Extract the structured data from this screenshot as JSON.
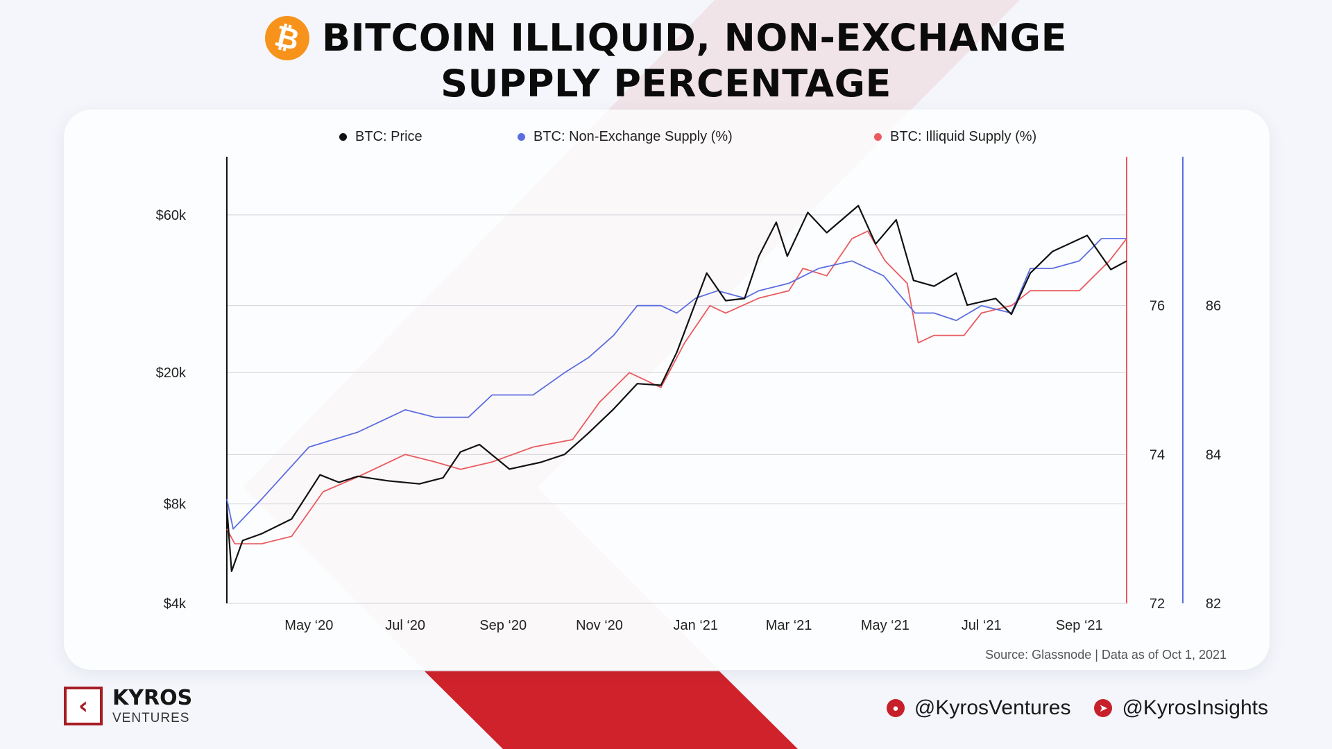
{
  "header": {
    "title_line1": "BITCOIN ILLIQUID, NON-EXCHANGE",
    "title_line2": "SUPPLY PERCENTAGE",
    "logo_icon": "bitcoin-logo-icon",
    "logo_glyph": "₿"
  },
  "colors": {
    "price": "#111111",
    "non_exchange": "#5b6de0",
    "illiquid": "#ea5a5f",
    "brand_red": "#c8202a",
    "bitcoin_orange": "#f7931a"
  },
  "chart_data": {
    "type": "line",
    "legend_placement": "top",
    "grid": true,
    "x_ticks": [
      "May ‘20",
      "Jul ‘20",
      "Sep ‘20",
      "Nov ‘20",
      "Jan ‘21",
      "Mar ‘21",
      "May ‘21",
      "Jul ‘21",
      "Sep ‘21"
    ],
    "x_tick_dates": [
      "2020-05-01",
      "2020-07-01",
      "2020-09-01",
      "2020-11-01",
      "2021-01-01",
      "2021-03-01",
      "2021-05-01",
      "2021-07-01",
      "2021-09-01"
    ],
    "x_range": [
      "2020-03-10",
      "2021-10-01"
    ],
    "axes": {
      "price": {
        "ticks": [
          "$60k",
          "$20k",
          "$8k",
          "$4k"
        ],
        "tick_values": [
          60000,
          20000,
          8000,
          4000
        ],
        "range": [
          4000,
          90000
        ],
        "scale": "log"
      },
      "illiquid": {
        "ticks": [
          "76",
          "74",
          "72"
        ],
        "tick_values": [
          76,
          74,
          72
        ],
        "range": [
          72,
          78
        ]
      },
      "non_exchange": {
        "ticks": [
          "86",
          "84",
          "82"
        ],
        "tick_values": [
          86,
          84,
          82
        ],
        "range": [
          82,
          88
        ]
      }
    },
    "series": [
      {
        "name": "BTC: Price",
        "axis": "price",
        "color": "#111111",
        "points": [
          [
            "2020-03-10",
            7800
          ],
          [
            "2020-03-13",
            5000
          ],
          [
            "2020-03-20",
            6200
          ],
          [
            "2020-04-01",
            6500
          ],
          [
            "2020-04-20",
            7200
          ],
          [
            "2020-05-08",
            9800
          ],
          [
            "2020-05-20",
            9300
          ],
          [
            "2020-06-01",
            9700
          ],
          [
            "2020-06-20",
            9400
          ],
          [
            "2020-07-10",
            9200
          ],
          [
            "2020-07-25",
            9600
          ],
          [
            "2020-08-05",
            11500
          ],
          [
            "2020-08-17",
            12100
          ],
          [
            "2020-09-05",
            10200
          ],
          [
            "2020-09-25",
            10700
          ],
          [
            "2020-10-10",
            11300
          ],
          [
            "2020-10-25",
            13100
          ],
          [
            "2020-11-10",
            15500
          ],
          [
            "2020-11-25",
            18500
          ],
          [
            "2020-12-10",
            18300
          ],
          [
            "2020-12-20",
            23000
          ],
          [
            "2021-01-08",
            40000
          ],
          [
            "2021-01-20",
            33000
          ],
          [
            "2021-02-01",
            33500
          ],
          [
            "2021-02-10",
            45000
          ],
          [
            "2021-02-21",
            57000
          ],
          [
            "2021-02-28",
            45000
          ],
          [
            "2021-03-13",
            61000
          ],
          [
            "2021-03-25",
            53000
          ],
          [
            "2021-04-14",
            64000
          ],
          [
            "2021-04-25",
            49000
          ],
          [
            "2021-05-08",
            58000
          ],
          [
            "2021-05-19",
            38000
          ],
          [
            "2021-06-01",
            36500
          ],
          [
            "2021-06-15",
            40000
          ],
          [
            "2021-06-22",
            32000
          ],
          [
            "2021-07-10",
            33500
          ],
          [
            "2021-07-20",
            30000
          ],
          [
            "2021-08-01",
            40000
          ],
          [
            "2021-08-15",
            46500
          ],
          [
            "2021-09-06",
            52000
          ],
          [
            "2021-09-21",
            41000
          ],
          [
            "2021-10-01",
            43500
          ]
        ]
      },
      {
        "name": "BTC: Non-Exchange Supply (%)",
        "axis": "non_exchange",
        "color": "#5b6de0",
        "points": [
          [
            "2020-03-10",
            83.4
          ],
          [
            "2020-03-14",
            83.0
          ],
          [
            "2020-04-01",
            83.4
          ],
          [
            "2020-05-01",
            84.1
          ],
          [
            "2020-06-01",
            84.3
          ],
          [
            "2020-07-01",
            84.6
          ],
          [
            "2020-07-20",
            84.5
          ],
          [
            "2020-08-10",
            84.5
          ],
          [
            "2020-08-25",
            84.8
          ],
          [
            "2020-09-20",
            84.8
          ],
          [
            "2020-10-10",
            85.1
          ],
          [
            "2020-10-25",
            85.3
          ],
          [
            "2020-11-10",
            85.6
          ],
          [
            "2020-11-25",
            86.0
          ],
          [
            "2020-12-10",
            86.0
          ],
          [
            "2020-12-20",
            85.9
          ],
          [
            "2021-01-01",
            86.1
          ],
          [
            "2021-01-15",
            86.2
          ],
          [
            "2021-02-01",
            86.1
          ],
          [
            "2021-02-10",
            86.2
          ],
          [
            "2021-03-01",
            86.3
          ],
          [
            "2021-03-20",
            86.5
          ],
          [
            "2021-04-10",
            86.6
          ],
          [
            "2021-04-30",
            86.4
          ],
          [
            "2021-05-20",
            85.9
          ],
          [
            "2021-06-01",
            85.9
          ],
          [
            "2021-06-15",
            85.8
          ],
          [
            "2021-07-01",
            86.0
          ],
          [
            "2021-07-20",
            85.9
          ],
          [
            "2021-08-01",
            86.5
          ],
          [
            "2021-08-15",
            86.5
          ],
          [
            "2021-09-01",
            86.6
          ],
          [
            "2021-09-15",
            86.9
          ],
          [
            "2021-10-01",
            86.9
          ]
        ]
      },
      {
        "name": "BTC: Illiquid Supply (%)",
        "axis": "illiquid",
        "color": "#ea5a5f",
        "points": [
          [
            "2020-03-10",
            73.0
          ],
          [
            "2020-03-15",
            72.8
          ],
          [
            "2020-04-01",
            72.8
          ],
          [
            "2020-04-20",
            72.9
          ],
          [
            "2020-05-10",
            73.5
          ],
          [
            "2020-06-01",
            73.7
          ],
          [
            "2020-07-01",
            74.0
          ],
          [
            "2020-07-20",
            73.9
          ],
          [
            "2020-08-05",
            73.8
          ],
          [
            "2020-08-25",
            73.9
          ],
          [
            "2020-09-20",
            74.1
          ],
          [
            "2020-10-15",
            74.2
          ],
          [
            "2020-11-01",
            74.7
          ],
          [
            "2020-11-20",
            75.1
          ],
          [
            "2020-12-10",
            74.9
          ],
          [
            "2020-12-25",
            75.5
          ],
          [
            "2021-01-10",
            76.0
          ],
          [
            "2021-01-20",
            75.9
          ],
          [
            "2021-02-10",
            76.1
          ],
          [
            "2021-03-01",
            76.2
          ],
          [
            "2021-03-10",
            76.5
          ],
          [
            "2021-03-25",
            76.4
          ],
          [
            "2021-04-10",
            76.9
          ],
          [
            "2021-04-20",
            77.0
          ],
          [
            "2021-05-01",
            76.6
          ],
          [
            "2021-05-15",
            76.3
          ],
          [
            "2021-05-22",
            75.5
          ],
          [
            "2021-06-01",
            75.6
          ],
          [
            "2021-06-20",
            75.6
          ],
          [
            "2021-07-01",
            75.9
          ],
          [
            "2021-07-20",
            76.0
          ],
          [
            "2021-08-01",
            76.2
          ],
          [
            "2021-09-01",
            76.2
          ],
          [
            "2021-09-20",
            76.6
          ],
          [
            "2021-10-01",
            76.9
          ]
        ]
      }
    ]
  },
  "source": "Source: Glassnode | Data as of Oct 1, 2021",
  "brand": {
    "name": "KYROS",
    "sub": "VENTURES",
    "glyph": "‹"
  },
  "social": [
    {
      "icon": "twitter-icon",
      "glyph": "●",
      "handle": "@KyrosVentures"
    },
    {
      "icon": "telegram-icon",
      "glyph": "➤",
      "handle": "@KyrosInsights"
    }
  ]
}
